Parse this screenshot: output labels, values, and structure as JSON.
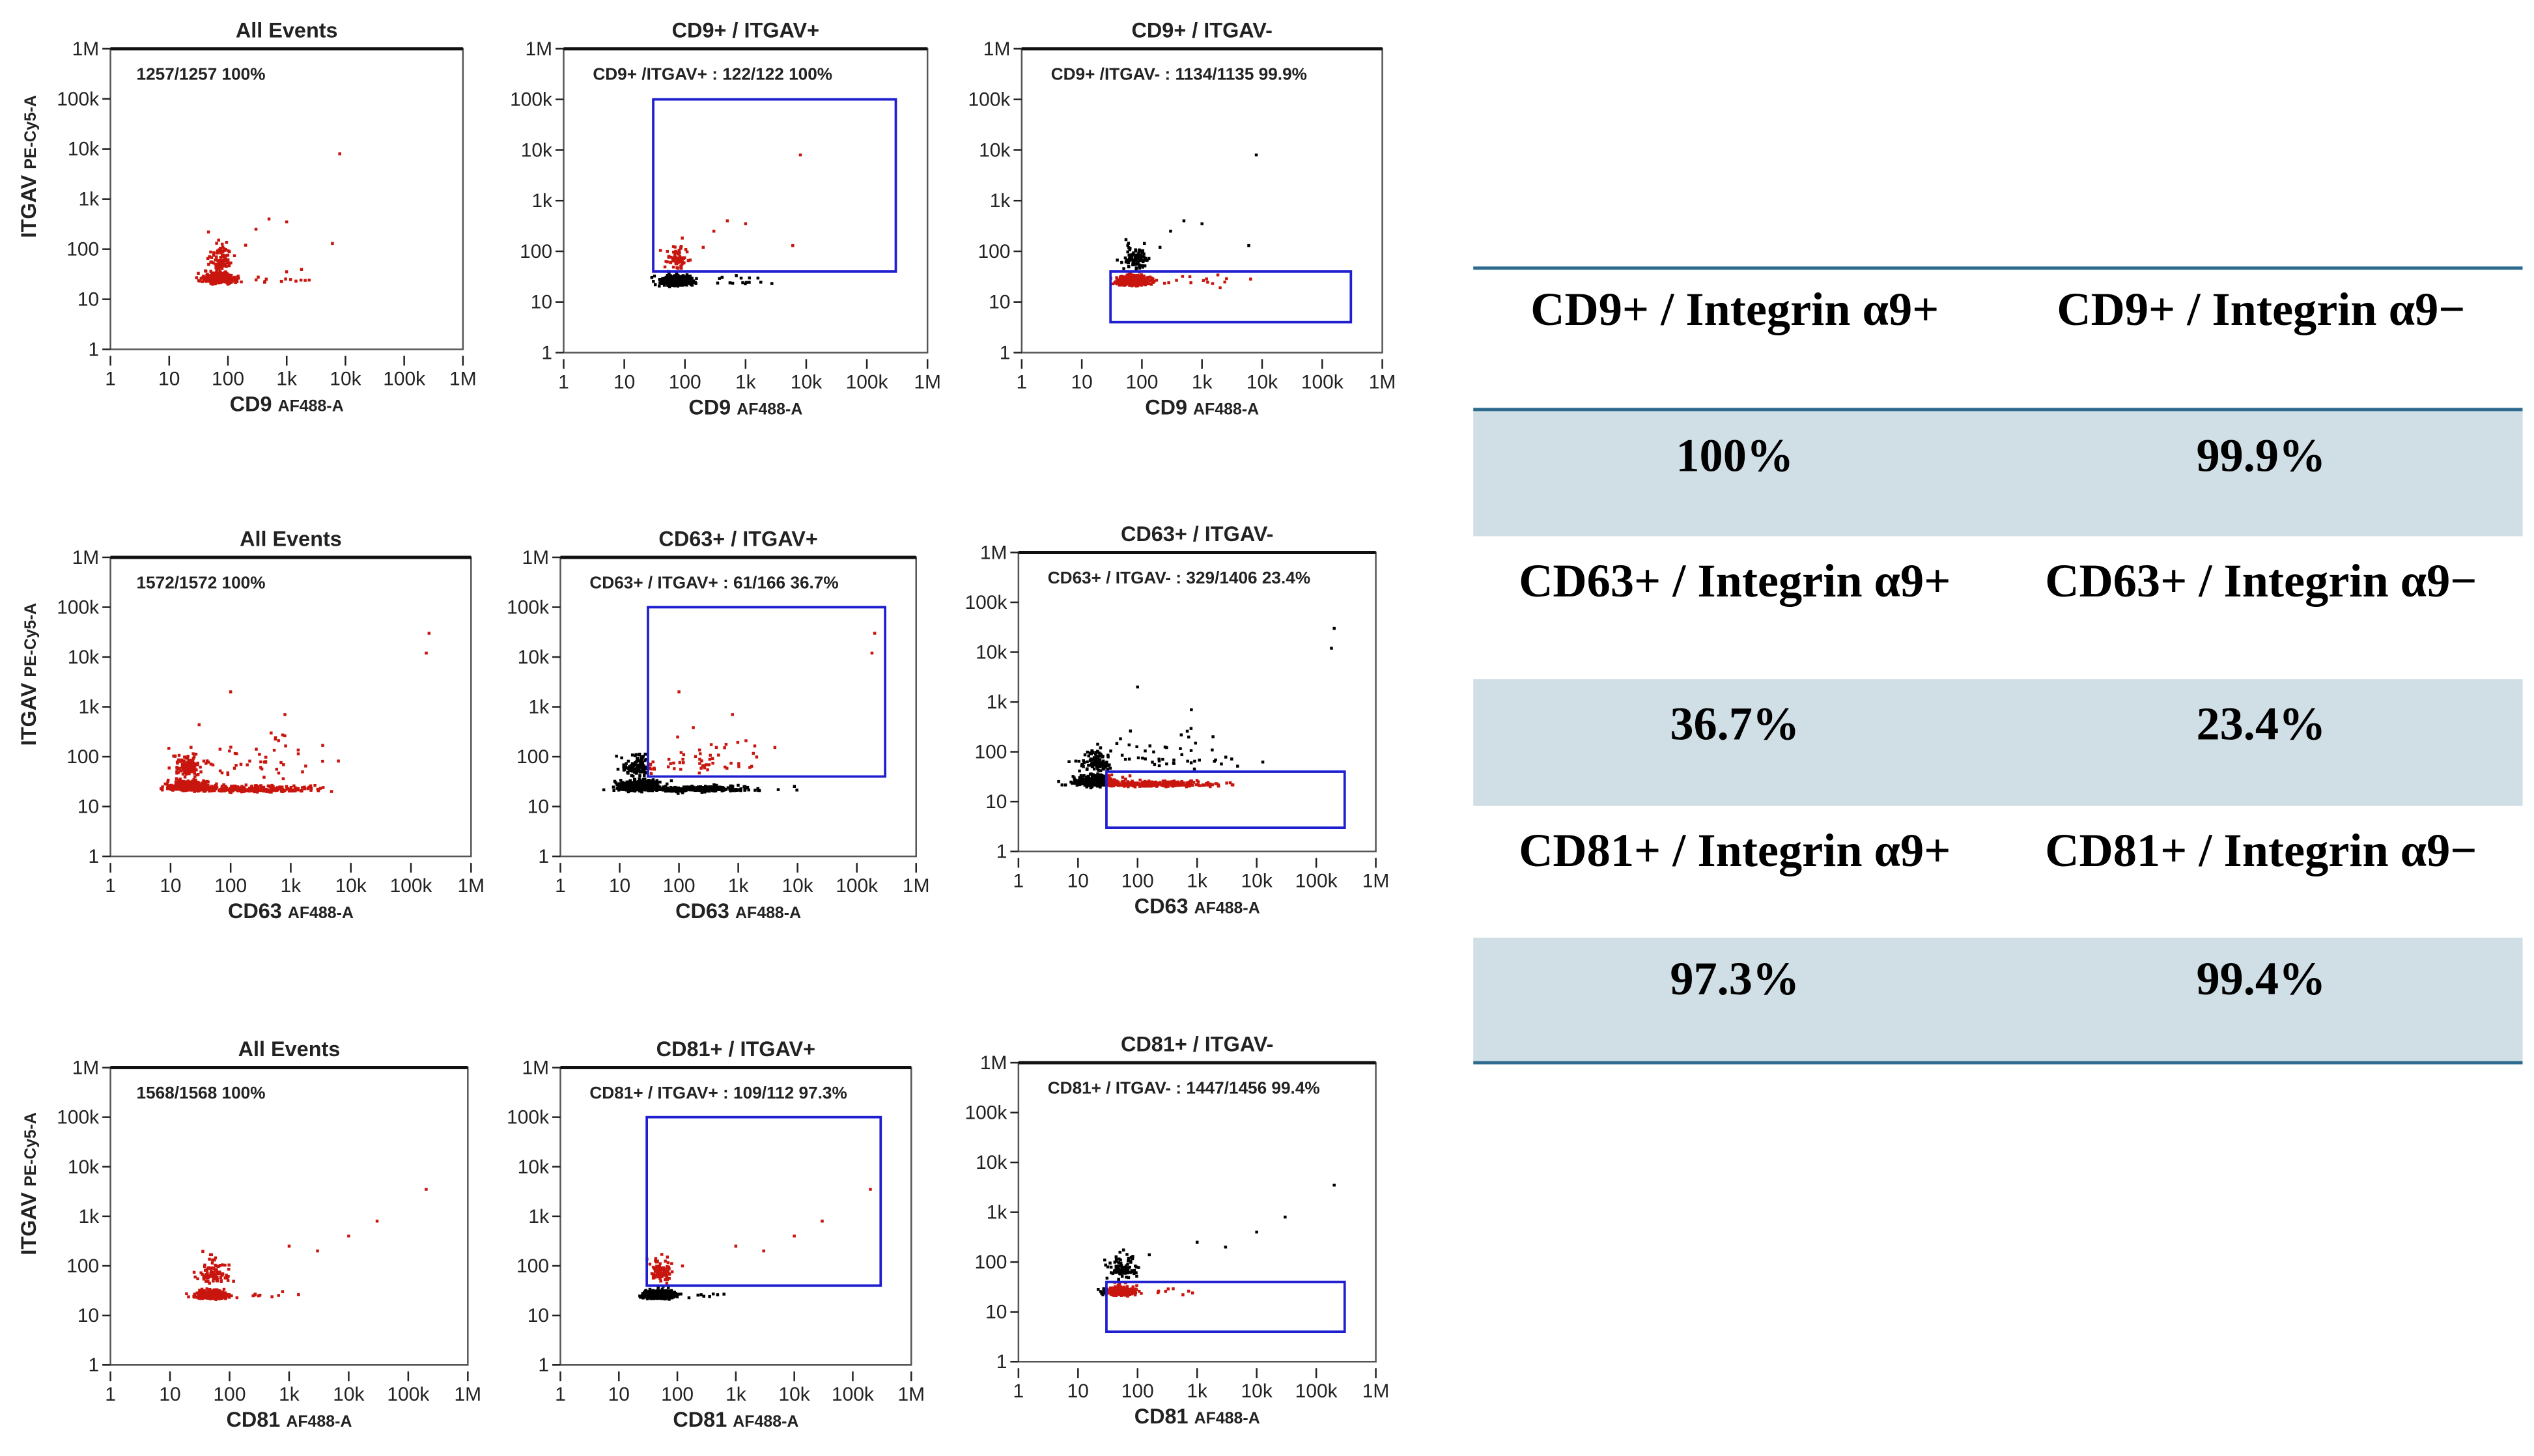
{
  "chart_data": [
    {
      "type": "scatter",
      "title": "All Events",
      "stat": "1257/1257   100%",
      "xlabel": "CD9",
      "xlabel_sub": "AF488-A",
      "ylabel": "ITGAV",
      "ylabel_sub": "PE-Cy5-A",
      "xscale": "log",
      "yscale": "log",
      "xlim": [
        1,
        1000000
      ],
      "ylim": [
        1,
        1000000
      ],
      "ticks": [
        "1",
        "10",
        "100",
        "1k",
        "10k",
        "100k",
        "1M"
      ],
      "gate": null,
      "clusters": [
        {
          "x": 70,
          "y": 25,
          "spread_x_dec": 0.12,
          "spread_y_dec": 0.06,
          "n": 500
        },
        {
          "x": 75,
          "y": 60,
          "spread_x_dec": 0.1,
          "spread_y_dec": 0.2,
          "n": 90
        },
        {
          "x": 800,
          "y": 25,
          "spread_x_dec": 0.3,
          "spread_y_dec": 0.08,
          "n": 15
        }
      ],
      "outliers": [
        [
          8000,
          8000
        ],
        [
          500,
          400
        ],
        [
          300,
          250
        ],
        [
          200,
          120
        ],
        [
          6000,
          130
        ],
        [
          1000,
          350
        ]
      ]
    },
    {
      "type": "scatter",
      "title": "CD9+ / ITGAV+",
      "stat": "CD9+ /ITGAV+ : 122/122   100%",
      "xlabel": "CD9",
      "xlabel_sub": "AF488-A",
      "xscale": "log",
      "yscale": "log",
      "xlim": [
        1,
        1000000
      ],
      "ylim": [
        1,
        1000000
      ],
      "ticks": [
        "1",
        "10",
        "100",
        "1k",
        "10k",
        "100k",
        "1M"
      ],
      "gate": {
        "x": [
          30,
          300000
        ],
        "y": [
          40,
          100000
        ]
      },
      "clusters": [
        {
          "x": 70,
          "y": 25,
          "spread_x_dec": 0.12,
          "spread_y_dec": 0.06,
          "n": 500
        },
        {
          "x": 75,
          "y": 70,
          "spread_x_dec": 0.08,
          "spread_y_dec": 0.15,
          "n": 70
        },
        {
          "x": 800,
          "y": 25,
          "spread_x_dec": 0.3,
          "spread_y_dec": 0.08,
          "n": 15
        }
      ],
      "outliers": [
        [
          8000,
          8000
        ],
        [
          500,
          400
        ],
        [
          300,
          250
        ],
        [
          200,
          120
        ],
        [
          6000,
          130
        ],
        [
          1000,
          350
        ]
      ]
    },
    {
      "type": "scatter",
      "title": "CD9+ / ITGAV-",
      "stat": "CD9+ /ITGAV- : 1134/1135   99.9%",
      "xlabel": "CD9",
      "xlabel_sub": "AF488-A",
      "xscale": "log",
      "yscale": "log",
      "xlim": [
        1,
        1000000
      ],
      "ylim": [
        1,
        1000000
      ],
      "ticks": [
        "1",
        "10",
        "100",
        "1k",
        "10k",
        "100k",
        "1M"
      ],
      "gate": {
        "x": [
          30,
          300000
        ],
        "y": [
          4,
          40
        ]
      },
      "clusters": [
        {
          "x": 70,
          "y": 25,
          "spread_x_dec": 0.12,
          "spread_y_dec": 0.06,
          "n": 500
        },
        {
          "x": 75,
          "y": 70,
          "spread_x_dec": 0.1,
          "spread_y_dec": 0.15,
          "n": 90
        },
        {
          "x": 800,
          "y": 25,
          "spread_x_dec": 0.3,
          "spread_y_dec": 0.08,
          "n": 15
        }
      ],
      "outliers": [
        [
          8000,
          8000
        ],
        [
          500,
          400
        ],
        [
          300,
          250
        ],
        [
          200,
          120
        ],
        [
          6000,
          130
        ],
        [
          1000,
          350
        ]
      ]
    },
    {
      "type": "scatter",
      "title": "All Events",
      "stat": "1572/1572   100%",
      "xlabel": "CD63",
      "xlabel_sub": "AF488-A",
      "ylabel": "ITGAV",
      "ylabel_sub": "PE-Cy5-A",
      "xscale": "log",
      "yscale": "log",
      "xlim": [
        1,
        1000000
      ],
      "ylim": [
        1,
        1000000
      ],
      "ticks": [
        "1",
        "10",
        "100",
        "1k",
        "10k",
        "100k",
        "1M"
      ],
      "gate": null,
      "clusters": [
        {
          "x": 20,
          "y": 25,
          "spread_x_dec": 0.15,
          "spread_y_dec": 0.06,
          "n": 500
        },
        {
          "x": 200,
          "y": 22,
          "spread_x_dec": 0.55,
          "spread_y_dec": 0.04,
          "n": 300
        },
        {
          "x": 20,
          "y": 60,
          "spread_x_dec": 0.12,
          "spread_y_dec": 0.15,
          "n": 120
        },
        {
          "x": 300,
          "y": 80,
          "spread_x_dec": 0.5,
          "spread_y_dec": 0.3,
          "n": 50
        }
      ],
      "outliers": [
        [
          200000,
          30000
        ],
        [
          180000,
          12000
        ],
        [
          100,
          2000
        ],
        [
          800,
          700
        ]
      ]
    },
    {
      "type": "scatter",
      "title": "CD63+ / ITGAV+",
      "stat": "CD63+ / ITGAV+ :   61/166   36.7%",
      "xlabel": "CD63",
      "xlabel_sub": "AF488-A",
      "xscale": "log",
      "yscale": "log",
      "xlim": [
        1,
        1000000
      ],
      "ylim": [
        1,
        1000000
      ],
      "ticks": [
        "1",
        "10",
        "100",
        "1k",
        "10k",
        "100k",
        "1M"
      ],
      "gate": {
        "x": [
          30,
          300000
        ],
        "y": [
          40,
          100000
        ]
      },
      "clusters": [
        {
          "x": 20,
          "y": 25,
          "spread_x_dec": 0.15,
          "spread_y_dec": 0.06,
          "n": 500
        },
        {
          "x": 200,
          "y": 22,
          "spread_x_dec": 0.55,
          "spread_y_dec": 0.04,
          "n": 300
        },
        {
          "x": 20,
          "y": 60,
          "spread_x_dec": 0.12,
          "spread_y_dec": 0.15,
          "n": 120
        },
        {
          "x": 300,
          "y": 80,
          "spread_x_dec": 0.5,
          "spread_y_dec": 0.3,
          "n": 50
        }
      ],
      "outliers": [
        [
          200000,
          30000
        ],
        [
          180000,
          12000
        ],
        [
          100,
          2000
        ],
        [
          800,
          700
        ]
      ]
    },
    {
      "type": "scatter",
      "title": "CD63+ / ITGAV-",
      "stat": "CD63+ / ITGAV- :  329/1406   23.4%",
      "xlabel": "CD63",
      "xlabel_sub": "AF488-A",
      "xscale": "log",
      "yscale": "log",
      "xlim": [
        1,
        1000000
      ],
      "ylim": [
        1,
        1000000
      ],
      "ticks": [
        "1",
        "10",
        "100",
        "1k",
        "10k",
        "100k",
        "1M"
      ],
      "gate": {
        "x": [
          30,
          300000
        ],
        "y": [
          3,
          40
        ]
      },
      "clusters": [
        {
          "x": 20,
          "y": 25,
          "spread_x_dec": 0.15,
          "spread_y_dec": 0.06,
          "n": 500
        },
        {
          "x": 200,
          "y": 22,
          "spread_x_dec": 0.55,
          "spread_y_dec": 0.04,
          "n": 300
        },
        {
          "x": 20,
          "y": 60,
          "spread_x_dec": 0.12,
          "spread_y_dec": 0.15,
          "n": 120
        },
        {
          "x": 300,
          "y": 80,
          "spread_x_dec": 0.5,
          "spread_y_dec": 0.3,
          "n": 50
        }
      ],
      "outliers": [
        [
          200000,
          30000
        ],
        [
          180000,
          12000
        ],
        [
          100,
          2000
        ],
        [
          800,
          700
        ]
      ]
    },
    {
      "type": "scatter",
      "title": "All Events",
      "stat": "1568/1568   100%",
      "xlabel": "CD81",
      "xlabel_sub": "AF488-A",
      "ylabel": "ITGAV",
      "ylabel_sub": "PE-Cy5-A",
      "xscale": "log",
      "yscale": "log",
      "xlim": [
        1,
        1000000
      ],
      "ylim": [
        1,
        1000000
      ],
      "ticks": [
        "1",
        "10",
        "100",
        "1k",
        "10k",
        "100k",
        "1M"
      ],
      "gate": null,
      "clusters": [
        {
          "x": 50,
          "y": 25,
          "spread_x_dec": 0.12,
          "spread_y_dec": 0.05,
          "n": 500
        },
        {
          "x": 55,
          "y": 70,
          "spread_x_dec": 0.12,
          "spread_y_dec": 0.15,
          "n": 100
        },
        {
          "x": 300,
          "y": 25,
          "spread_x_dec": 0.3,
          "spread_y_dec": 0.05,
          "n": 10
        }
      ],
      "outliers": [
        [
          200000,
          3500
        ],
        [
          30000,
          800
        ],
        [
          10000,
          400
        ],
        [
          3000,
          200
        ],
        [
          1000,
          250
        ]
      ]
    },
    {
      "type": "scatter",
      "title": "CD81+ / ITGAV+",
      "stat": "CD81+ / ITGAV+ :  109/112   97.3%",
      "xlabel": "CD81",
      "xlabel_sub": "AF488-A",
      "xscale": "log",
      "yscale": "log",
      "xlim": [
        1,
        1000000
      ],
      "ylim": [
        1,
        1000000
      ],
      "ticks": [
        "1",
        "10",
        "100",
        "1k",
        "10k",
        "100k",
        "1M"
      ],
      "gate": {
        "x": [
          30,
          300000
        ],
        "y": [
          40,
          100000
        ]
      },
      "clusters": [
        {
          "x": 50,
          "y": 25,
          "spread_x_dec": 0.12,
          "spread_y_dec": 0.05,
          "n": 500
        },
        {
          "x": 55,
          "y": 70,
          "spread_x_dec": 0.1,
          "spread_y_dec": 0.15,
          "n": 90
        },
        {
          "x": 300,
          "y": 25,
          "spread_x_dec": 0.3,
          "spread_y_dec": 0.05,
          "n": 10
        }
      ],
      "outliers": [
        [
          200000,
          3500
        ],
        [
          30000,
          800
        ],
        [
          10000,
          400
        ],
        [
          3000,
          200
        ],
        [
          1000,
          250
        ]
      ]
    },
    {
      "type": "scatter",
      "title": "CD81+ / ITGAV-",
      "stat": "CD81+ / ITGAV- :  1447/1456   99.4%",
      "xlabel": "CD81",
      "xlabel_sub": "AF488-A",
      "xscale": "log",
      "yscale": "log",
      "xlim": [
        1,
        1000000
      ],
      "ylim": [
        1,
        1000000
      ],
      "ticks": [
        "1",
        "10",
        "100",
        "1k",
        "10k",
        "100k",
        "1M"
      ],
      "gate": {
        "x": [
          30,
          300000
        ],
        "y": [
          4,
          40
        ]
      },
      "clusters": [
        {
          "x": 50,
          "y": 25,
          "spread_x_dec": 0.12,
          "spread_y_dec": 0.05,
          "n": 500
        },
        {
          "x": 55,
          "y": 70,
          "spread_x_dec": 0.12,
          "spread_y_dec": 0.15,
          "n": 100
        },
        {
          "x": 300,
          "y": 25,
          "spread_x_dec": 0.3,
          "spread_y_dec": 0.05,
          "n": 10
        }
      ],
      "outliers": [
        [
          200000,
          3500
        ],
        [
          30000,
          800
        ],
        [
          10000,
          400
        ],
        [
          3000,
          200
        ],
        [
          1000,
          250
        ]
      ]
    }
  ],
  "summary_table": {
    "rows": [
      {
        "labels": [
          "CD9+ / Integrin α9+",
          "CD9+ / Integrin α9−"
        ],
        "values": [
          "100%",
          "99.9%"
        ]
      },
      {
        "labels": [
          "CD63+ / Integrin α9+",
          "CD63+ / Integrin α9−"
        ],
        "values": [
          "36.7%",
          "23.4%"
        ]
      },
      {
        "labels": [
          "CD81+ / Integrin α9+",
          "CD81+ / Integrin α9−"
        ],
        "values": [
          "97.3%",
          "99.4%"
        ]
      }
    ]
  },
  "colors": {
    "gated": "#c8160e",
    "ungated": "#000000",
    "gate": "#1f1fd0",
    "band": "#d0dfe6",
    "rule": "#2e6a8e"
  }
}
